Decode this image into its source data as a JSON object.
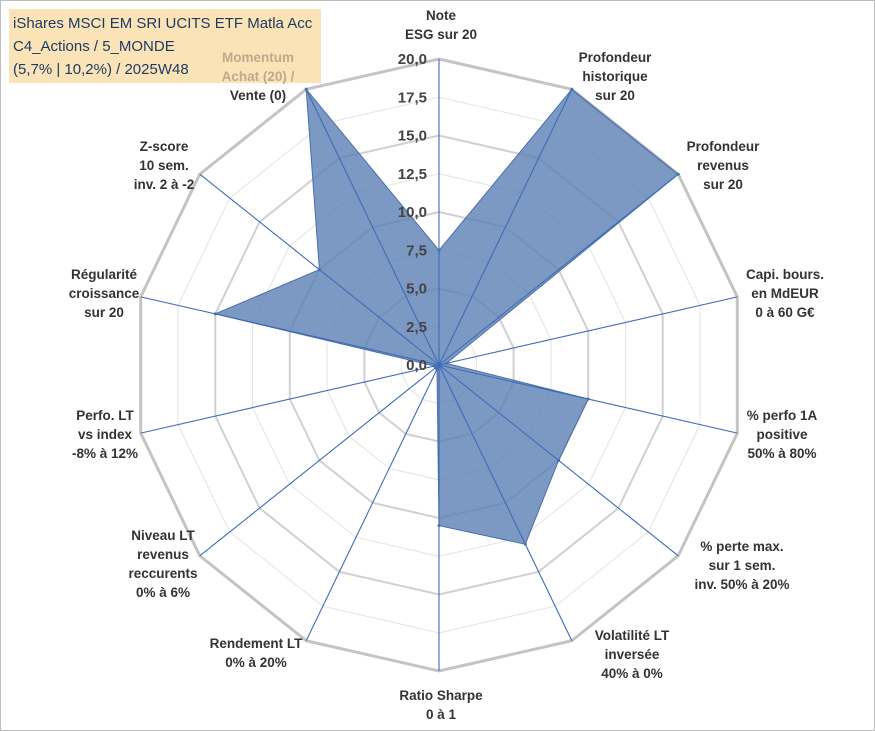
{
  "chart_data": {
    "type": "radar",
    "title_lines": [
      "iShares MSCI EM SRI UCITS ETF Matla Acc",
      "C4_Actions / 5_MONDE",
      "(5,7% | 10,2%) / 2025W48"
    ],
    "scale": {
      "min": 0,
      "max": 20,
      "step": 2.5
    },
    "tick_labels": [
      "0,0",
      "2,5",
      "5,0",
      "7,5",
      "10,0",
      "12,5",
      "15,0",
      "17,5",
      "20,0"
    ],
    "axes": [
      {
        "label": [
          "Note",
          "ESG sur 20"
        ],
        "value": 7.5
      },
      {
        "label": [
          "Profondeur",
          "historique",
          "sur 20"
        ],
        "value": 20
      },
      {
        "label": [
          "Profondeur",
          "revenus",
          "sur 20"
        ],
        "value": 20
      },
      {
        "label": [
          "Capi. bours.",
          "en MdEUR",
          "0 à 60 G€"
        ],
        "value": 0.5
      },
      {
        "label": [
          "% perfo 1A",
          "positive",
          "50% à 80%"
        ],
        "value": 10
      },
      {
        "label": [
          "% perte max.",
          "sur 1 sem.",
          "inv. 50% à 20%"
        ],
        "value": 10
      },
      {
        "label": [
          "Volatilité LT",
          "inversée",
          "40% à 0%"
        ],
        "value": 13
      },
      {
        "label": [
          "Ratio Sharpe",
          "0 à 1"
        ],
        "value": 10.5
      },
      {
        "label": [
          "Rendement LT",
          "0% à 20%"
        ],
        "value": 0.3
      },
      {
        "label": [
          "Niveau LT",
          "revenus",
          "reccurents",
          "0% à 6%"
        ],
        "value": 0.3
      },
      {
        "label": [
          "Perfo. LT",
          "vs index",
          "-8% à 12%"
        ],
        "value": 0.3
      },
      {
        "label": [
          "Régularité",
          "croissance",
          "sur 20"
        ],
        "value": 15
      },
      {
        "label": [
          "Z-score",
          "10 sem.",
          "inv. 2 à -2"
        ],
        "value": 10
      },
      {
        "label": [
          "Momentum",
          "Achat (20) /",
          "Vente (0)"
        ],
        "value": 20,
        "muted_lines": 2
      }
    ],
    "colors": {
      "fill": "#5b7fb5",
      "fill_opacity": 0.8,
      "spoke": "#3d6bb8",
      "grid_outer": "#c4c4c4",
      "grid_inner": "#e3e3e3",
      "title_bg": "#fbe3b8",
      "title_text": "#1f3b63"
    }
  }
}
